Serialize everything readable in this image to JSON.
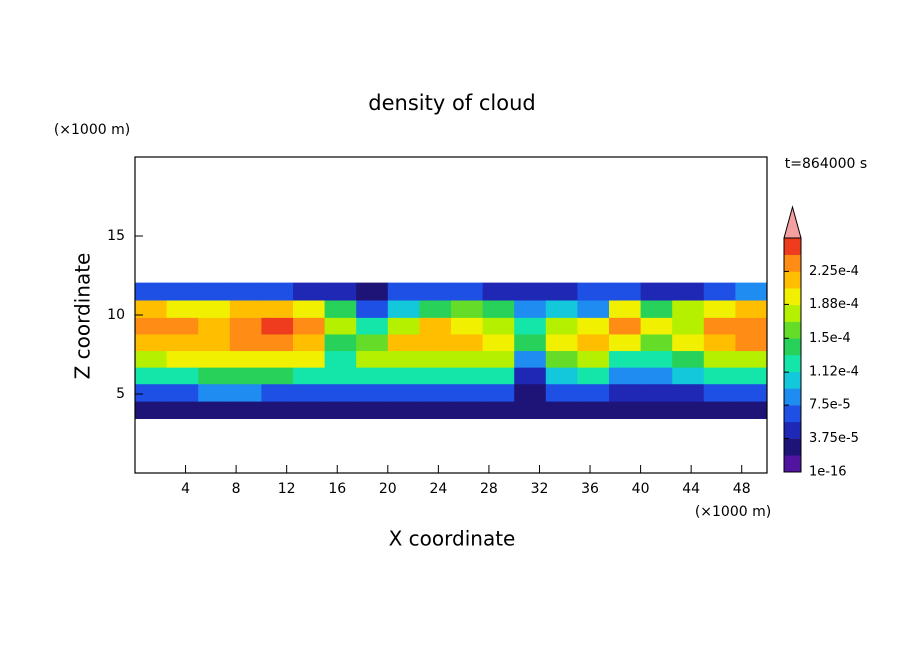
{
  "chart_data": {
    "type": "contour",
    "title": "density of cloud",
    "x_label": "X coordinate",
    "y_label": "Z coordinate",
    "x_unit_label": "(×1000 m)",
    "y_unit_label": "(×1000 m)",
    "annotation": "t=864000 s",
    "xlim": [
      0,
      50
    ],
    "ylim": [
      0,
      20
    ],
    "xticks": [
      4,
      8,
      12,
      16,
      20,
      24,
      28,
      32,
      36,
      40,
      44,
      48
    ],
    "yticks": [
      5,
      10,
      15
    ],
    "x": [
      1.25,
      3.75,
      6.25,
      8.75,
      11.25,
      13.75,
      16.25,
      18.75,
      21.25,
      23.75,
      26.25,
      28.75,
      31.25,
      33.75,
      36.25,
      38.75,
      41.25,
      43.75,
      46.25,
      48.75
    ],
    "z": [
      4.0,
      5.1,
      6.2,
      7.2,
      8.3,
      9.3,
      10.4,
      11.5
    ],
    "values": [
      [
        2e-05,
        2e-05,
        2e-05,
        2e-05,
        2e-05,
        2e-05,
        2e-05,
        2e-05,
        2e-05,
        2e-05,
        2e-05,
        2e-05,
        3e-05,
        2e-05,
        2e-05,
        3e-05,
        3e-05,
        3e-05,
        2e-05,
        2e-05
      ],
      [
        7e-05,
        7e-05,
        8e-05,
        8e-05,
        7e-05,
        7e-05,
        7e-05,
        7e-05,
        7e-05,
        7e-05,
        7e-05,
        7e-05,
        3e-05,
        6e-05,
        7e-05,
        5e-05,
        5e-05,
        5e-05,
        7e-05,
        7e-05
      ],
      [
        0.00013,
        0.00013,
        0.00014,
        0.00014,
        0.00014,
        0.00013,
        0.00012,
        0.00013,
        0.00013,
        0.00013,
        0.00013,
        0.00012,
        5e-05,
        0.00011,
        0.00013,
        9e-05,
        8e-05,
        0.0001,
        0.00013,
        0.00013
      ],
      [
        0.00018,
        0.00019,
        0.0002,
        0.0002,
        0.0002,
        0.00019,
        0.00012,
        0.00017,
        0.00018,
        0.00018,
        0.00018,
        0.00017,
        9e-05,
        0.00016,
        0.00017,
        0.00013,
        0.00012,
        0.00014,
        0.00018,
        0.00018
      ],
      [
        0.00022,
        0.00021,
        0.00022,
        0.00023,
        0.00023,
        0.00022,
        0.00015,
        0.00016,
        0.00021,
        0.00022,
        0.00021,
        0.0002,
        0.00014,
        0.0002,
        0.00022,
        0.0002,
        0.00016,
        0.00019,
        0.00022,
        0.00023
      ],
      [
        0.00024,
        0.00023,
        0.00022,
        0.00024,
        0.00025,
        0.00024,
        0.00018,
        0.00013,
        0.00017,
        0.00021,
        0.0002,
        0.00018,
        0.00013,
        0.00018,
        0.00019,
        0.00023,
        0.00019,
        0.00017,
        0.00023,
        0.00024
      ],
      [
        0.00021,
        0.00019,
        0.0002,
        0.00022,
        0.00022,
        0.00019,
        0.00015,
        7e-05,
        0.00011,
        0.00015,
        0.00016,
        0.00014,
        9e-05,
        0.00011,
        9e-05,
        0.00019,
        0.00015,
        0.00017,
        0.0002,
        0.00022
      ],
      [
        6e-05,
        6e-05,
        7e-05,
        7e-05,
        6e-05,
        5e-05,
        4e-05,
        3e-05,
        6e-05,
        7e-05,
        7e-05,
        5e-05,
        4e-05,
        5e-05,
        6e-05,
        6e-05,
        5e-05,
        5e-05,
        6e-05,
        8e-05
      ]
    ],
    "clim": [
      1e-16,
      0.0002625
    ],
    "cticks": [
      {
        "value": 1e-16,
        "label": "1e-16"
      },
      {
        "value": 3.75e-05,
        "label": "3.75e-5"
      },
      {
        "value": 7.5e-05,
        "label": "7.5e-5"
      },
      {
        "value": 0.000112,
        "label": "1.12e-4"
      },
      {
        "value": 0.00015,
        "label": "1.5e-4"
      },
      {
        "value": 0.000188,
        "label": "1.88e-4"
      },
      {
        "value": 0.000225,
        "label": "2.25e-4"
      }
    ],
    "colors": [
      "#5014a0",
      "#1e1478",
      "#1e28b4",
      "#1e50e6",
      "#1e8cf0",
      "#14c8dc",
      "#14e6aa",
      "#28d25a",
      "#64dc28",
      "#b4f000",
      "#f0f000",
      "#ffbe00",
      "#ff8c14",
      "#f03c1e"
    ],
    "extend_color": "#f4a0a0"
  }
}
